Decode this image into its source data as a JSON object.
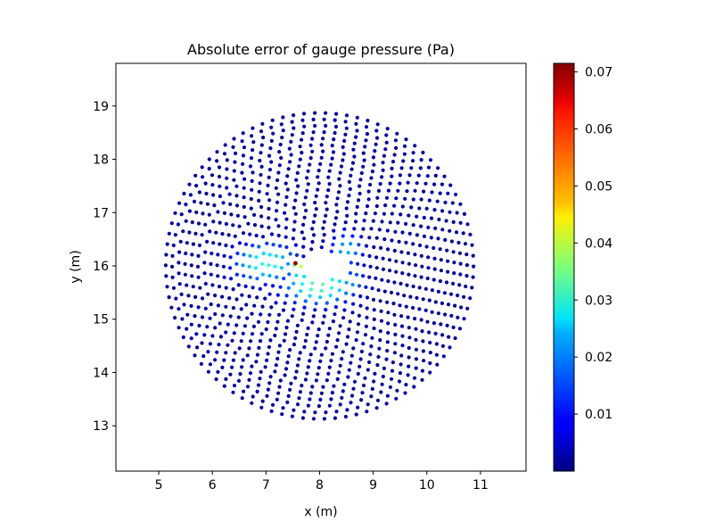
{
  "chart_data": {
    "type": "scatter",
    "title": "Absolute error of gauge pressure (Pa)",
    "xlabel": "x (m)",
    "ylabel": "y (m)",
    "xlim": [
      4.2,
      11.85
    ],
    "ylim": [
      12.15,
      19.8
    ],
    "x_ticks": [
      5,
      6,
      7,
      8,
      9,
      10,
      11
    ],
    "y_ticks": [
      13,
      14,
      15,
      16,
      17,
      18,
      19
    ],
    "x_tick_labels": [
      "5",
      "6",
      "7",
      "8",
      "9",
      "10",
      "11"
    ],
    "y_tick_labels": [
      "13",
      "14",
      "15",
      "16",
      "17",
      "18",
      "19"
    ],
    "colormap": "jet",
    "colorbar": {
      "range": [
        0.0,
        0.0715
      ],
      "ticks": [
        0.01,
        0.02,
        0.03,
        0.04,
        0.05,
        0.06,
        0.07
      ],
      "tick_labels": [
        "0.01",
        "0.02",
        "0.03",
        "0.04",
        "0.05",
        "0.06",
        "0.07"
      ]
    },
    "points_description": "Circular cloud of measurement points centered near (8.0, 16.0), radius about 2.9 m; errors near 0.002 except a high-error band next to the triangular gap at about x 7.4 to 8.7, y 15.7 to 16.2",
    "disk": {
      "center": [
        8.0,
        16.0
      ],
      "radius": 2.9
    },
    "gap_triangle": [
      [
        7.55,
        16.1
      ],
      [
        8.5,
        16.25
      ],
      [
        8.55,
        15.75
      ]
    ],
    "peak": {
      "x": 7.55,
      "y": 16.05,
      "value": 0.07
    },
    "hotspots": [
      {
        "x": 7.0,
        "y": 16.05,
        "value": 0.03,
        "sx": 0.45,
        "sy": 0.28
      },
      {
        "x": 8.0,
        "y": 15.65,
        "value": 0.034,
        "sx": 0.5,
        "sy": 0.28
      },
      {
        "x": 8.5,
        "y": 16.3,
        "value": 0.022,
        "sx": 0.25,
        "sy": 0.25
      },
      {
        "x": 8.6,
        "y": 15.7,
        "value": 0.02,
        "sx": 0.2,
        "sy": 0.2
      },
      {
        "x": 7.6,
        "y": 15.95,
        "value": 0.045,
        "sx": 0.15,
        "sy": 0.12
      }
    ],
    "grid": false,
    "legend": "none"
  }
}
